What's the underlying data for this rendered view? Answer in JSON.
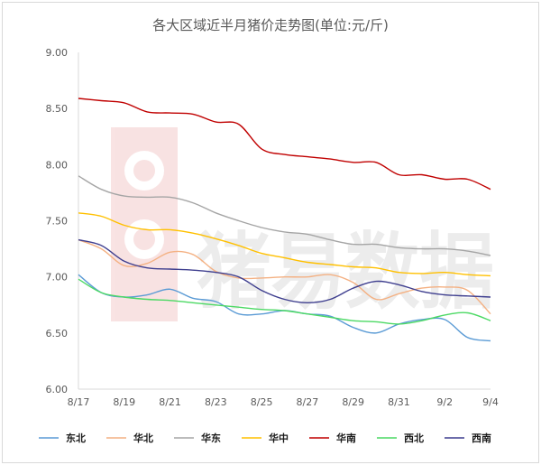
{
  "chart_data": {
    "type": "line",
    "title": "各大区域近半月猪价走势图(单位:元/斤)",
    "xlabel": "",
    "ylabel": "",
    "ylim": [
      6.0,
      9.0
    ],
    "yticks": [
      "6.00",
      "6.50",
      "7.00",
      "7.50",
      "8.00",
      "8.50",
      "9.00"
    ],
    "x": [
      "8/17",
      "8/18",
      "8/19",
      "8/20",
      "8/21",
      "8/22",
      "8/23",
      "8/24",
      "8/25",
      "8/26",
      "8/27",
      "8/28",
      "8/29",
      "8/30",
      "8/31",
      "9/1",
      "9/2",
      "9/3",
      "9/4"
    ],
    "xticks": [
      "8/17",
      "8/19",
      "8/21",
      "8/23",
      "8/25",
      "8/27",
      "8/29",
      "8/31",
      "9/2",
      "9/4"
    ],
    "grid": false,
    "legend_position": "bottom",
    "series": [
      {
        "name": "东北",
        "color": "#5b9bd5",
        "values": [
          7.02,
          6.86,
          6.82,
          6.84,
          6.89,
          6.81,
          6.78,
          6.67,
          6.67,
          6.7,
          6.67,
          6.65,
          6.55,
          6.5,
          6.58,
          6.62,
          6.62,
          6.46,
          6.43
        ]
      },
      {
        "name": "华北",
        "color": "#f4b183",
        "values": [
          7.33,
          7.25,
          7.1,
          7.12,
          7.22,
          7.2,
          7.05,
          6.99,
          6.99,
          7.0,
          7.0,
          7.02,
          6.95,
          6.8,
          6.85,
          6.9,
          6.91,
          6.88,
          6.67
        ]
      },
      {
        "name": "华东",
        "color": "#a5a5a5",
        "values": [
          7.9,
          7.78,
          7.72,
          7.71,
          7.71,
          7.66,
          7.57,
          7.5,
          7.44,
          7.4,
          7.38,
          7.33,
          7.29,
          7.29,
          7.26,
          7.25,
          7.25,
          7.23,
          7.19
        ]
      },
      {
        "name": "华中",
        "color": "#ffc000",
        "values": [
          7.57,
          7.54,
          7.46,
          7.42,
          7.42,
          7.39,
          7.34,
          7.28,
          7.21,
          7.17,
          7.13,
          7.11,
          7.09,
          7.08,
          7.04,
          7.03,
          7.04,
          7.02,
          7.01
        ]
      },
      {
        "name": "华南",
        "color": "#c00000",
        "values": [
          8.59,
          8.57,
          8.55,
          8.47,
          8.46,
          8.45,
          8.38,
          8.36,
          8.14,
          8.09,
          8.07,
          8.05,
          8.02,
          8.02,
          7.91,
          7.91,
          7.87,
          7.87,
          7.78
        ]
      },
      {
        "name": "西北",
        "color": "#4cd964",
        "values": [
          6.98,
          6.86,
          6.82,
          6.8,
          6.79,
          6.77,
          6.75,
          6.73,
          6.71,
          6.7,
          6.67,
          6.64,
          6.61,
          6.6,
          6.58,
          6.61,
          6.66,
          6.68,
          6.61
        ]
      },
      {
        "name": "西南",
        "color": "#3f3f8f",
        "values": [
          7.33,
          7.28,
          7.14,
          7.08,
          7.07,
          7.06,
          7.04,
          7.0,
          6.88,
          6.8,
          6.77,
          6.8,
          6.9,
          6.96,
          6.93,
          6.87,
          6.84,
          6.83,
          6.82
        ]
      }
    ]
  },
  "watermark": "猪易数据"
}
